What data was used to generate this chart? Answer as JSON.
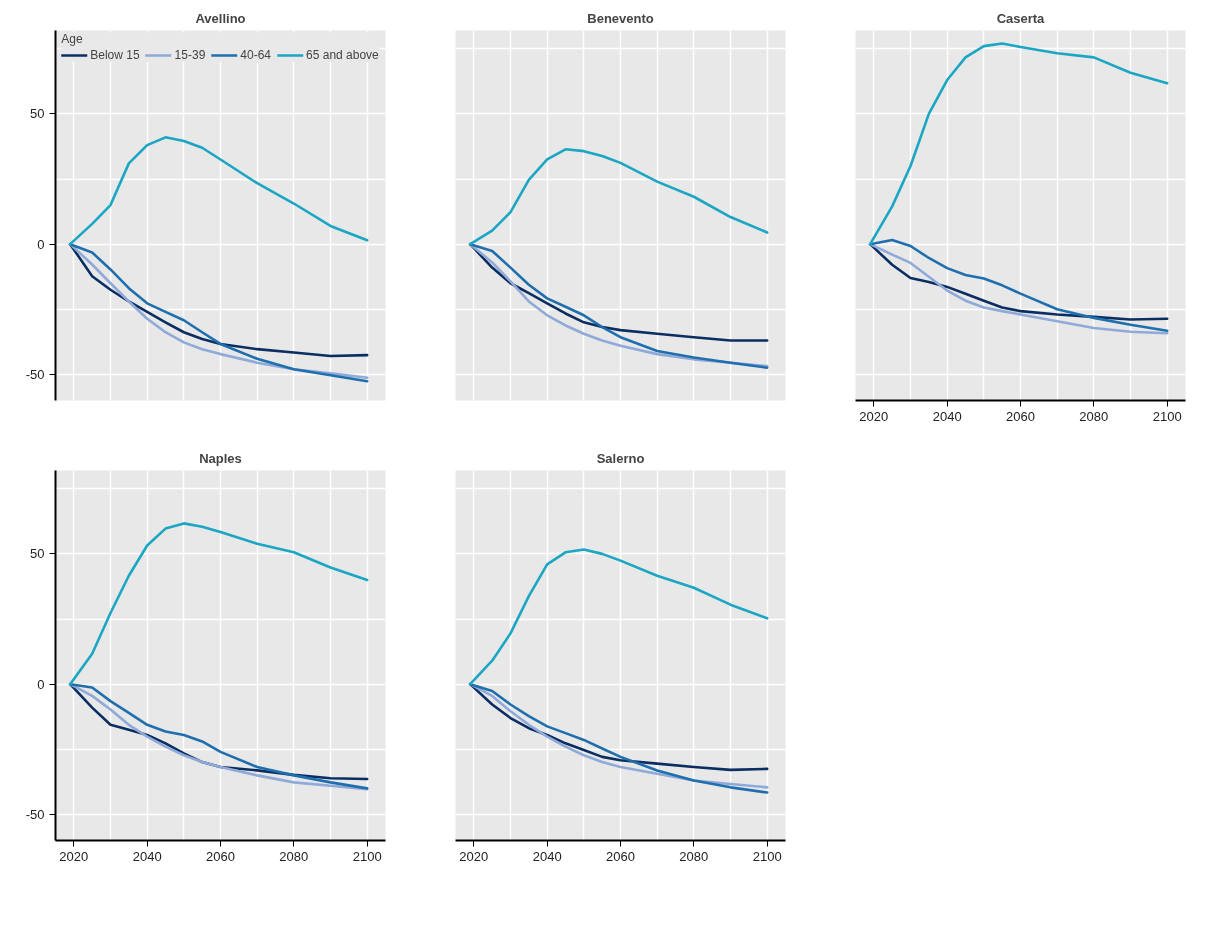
{
  "chart_data": [
    {
      "type": "line",
      "title": "Avellino",
      "legend": "top",
      "legend_title": "Age",
      "tick_labels": "y",
      "grid": true,
      "x": [
        2019,
        2025,
        2030,
        2035,
        2040,
        2045,
        2050,
        2055,
        2060,
        2070,
        2080,
        2090,
        2100
      ],
      "xlim": [
        2015,
        2105
      ],
      "xticks": [
        2020,
        {
          "value": 2030,
          "label": null
        },
        2040,
        {
          "value": 2050,
          "label": null
        },
        2060,
        {
          "value": 2070,
          "label": null
        },
        2080,
        {
          "value": 2090,
          "label": null
        },
        2100
      ],
      "ylim": [
        -60,
        82
      ],
      "yticks": [
        -50,
        {
          "value": -25,
          "label": null
        },
        0,
        {
          "value": 25,
          "label": null
        },
        50,
        {
          "value": 75,
          "label": null
        }
      ],
      "series": [
        {
          "name": "Below 15",
          "color": "#0b2e62",
          "values": [
            0,
            -12.3,
            -17.5,
            -22,
            -26,
            -30,
            -33.8,
            -36.4,
            -38.3,
            -40.3,
            -41.6,
            -42.9,
            -42.6
          ]
        },
        {
          "name": "15-39",
          "color": "#8fa9d8",
          "values": [
            0,
            -7.8,
            -15,
            -22,
            -28.6,
            -33.8,
            -37.7,
            -40.3,
            -42.2,
            -45.5,
            -48,
            -49.6,
            -51.3
          ]
        },
        {
          "name": "40-64",
          "color": "#1f6fae",
          "values": [
            0,
            -3.2,
            -9.7,
            -16.9,
            -22.7,
            -26,
            -29.2,
            -33.8,
            -38.3,
            -44,
            -48,
            -50.3,
            -52.6
          ]
        },
        {
          "name": "65 and above",
          "color": "#1ba6c3",
          "values": [
            0,
            7.8,
            15,
            31,
            38,
            41,
            39.6,
            37,
            32.5,
            23.4,
            15.6,
            7,
            1.5
          ]
        }
      ]
    },
    {
      "type": "line",
      "title": "Benevento",
      "tick_labels": false,
      "grid": true,
      "x": [
        2019,
        2025,
        2030,
        2035,
        2040,
        2045,
        2050,
        2055,
        2060,
        2070,
        2080,
        2090,
        2100
      ],
      "xlim": [
        2015,
        2105
      ],
      "xticks": [
        2020,
        {
          "value": 2030,
          "label": null
        },
        2040,
        {
          "value": 2050,
          "label": null
        },
        2060,
        {
          "value": 2070,
          "label": null
        },
        2080,
        {
          "value": 2090,
          "label": null
        },
        2100
      ],
      "ylim": [
        -60,
        82
      ],
      "yticks": [
        -50,
        {
          "value": -25,
          "label": null
        },
        0,
        {
          "value": 25,
          "label": null
        },
        50,
        {
          "value": 75,
          "label": null
        }
      ],
      "series": [
        {
          "color": "#0b2e62",
          "values": [
            0,
            -9,
            -15,
            -18.8,
            -22.7,
            -26.6,
            -30,
            -31.8,
            -33,
            -34.4,
            -35.7,
            -37,
            -37
          ]
        },
        {
          "color": "#8fa9d8",
          "values": [
            0,
            -7,
            -14.3,
            -22,
            -27.3,
            -31.2,
            -34.4,
            -37,
            -39,
            -42.2,
            -44.2,
            -45.5,
            -46.8
          ]
        },
        {
          "color": "#1f6fae",
          "values": [
            0,
            -2.6,
            -9,
            -15.6,
            -20.8,
            -24,
            -27.3,
            -31.8,
            -35.7,
            -41,
            -43.5,
            -45.5,
            -47.4
          ]
        },
        {
          "color": "#1ba6c3",
          "values": [
            0,
            5.2,
            12.3,
            24.7,
            32.5,
            36.4,
            35.7,
            33.8,
            31.2,
            24,
            18.2,
            10.4,
            4.5
          ]
        }
      ]
    },
    {
      "type": "line",
      "title": "Caserta",
      "tick_labels": "x",
      "grid": true,
      "x": [
        2019,
        2025,
        2030,
        2035,
        2040,
        2045,
        2050,
        2055,
        2060,
        2070,
        2080,
        2090,
        2100
      ],
      "xlim": [
        2015,
        2105
      ],
      "xticks": [
        2020,
        {
          "value": 2030,
          "label": null
        },
        2040,
        {
          "value": 2050,
          "label": null
        },
        2060,
        {
          "value": 2070,
          "label": null
        },
        2080,
        {
          "value": 2090,
          "label": null
        },
        2100
      ],
      "ylim": [
        -60,
        82
      ],
      "yticks": [
        -50,
        {
          "value": -25,
          "label": null
        },
        0,
        {
          "value": 25,
          "label": null
        },
        50,
        {
          "value": 75,
          "label": null
        }
      ],
      "series": [
        {
          "color": "#0b2e62",
          "values": [
            0,
            -7.9,
            -13,
            -14.5,
            -16.4,
            -19,
            -21.7,
            -24.3,
            -25.7,
            -27,
            -27.9,
            -28.9,
            -28.6
          ]
        },
        {
          "color": "#8fa9d8",
          "values": [
            0,
            -4,
            -7.2,
            -12.5,
            -17.8,
            -21.7,
            -24.3,
            -25.7,
            -27,
            -29.6,
            -32.2,
            -33.6,
            -34.2
          ]
        },
        {
          "color": "#1f6fae",
          "values": [
            0,
            1.6,
            -0.7,
            -5.3,
            -9.2,
            -11.8,
            -13.2,
            -15.8,
            -19,
            -25,
            -28.3,
            -30.9,
            -33.2
          ]
        },
        {
          "color": "#1ba6c3",
          "values": [
            0,
            14.5,
            30,
            50,
            63,
            71.7,
            76,
            77,
            75.7,
            73.3,
            71.7,
            65.8,
            61.8
          ]
        }
      ]
    },
    {
      "type": "line",
      "title": "Naples",
      "grid": true,
      "x": [
        2019,
        2025,
        2030,
        2035,
        2040,
        2045,
        2050,
        2055,
        2060,
        2070,
        2080,
        2090,
        2100
      ],
      "xlim": [
        2015,
        2105
      ],
      "xticks": [
        2020,
        {
          "value": 2030,
          "label": null
        },
        2040,
        {
          "value": 2050,
          "label": null
        },
        2060,
        {
          "value": 2070,
          "label": null
        },
        2080,
        {
          "value": 2090,
          "label": null
        },
        2100
      ],
      "ylim": [
        -60,
        82
      ],
      "yticks": [
        -50,
        {
          "value": -25,
          "label": null
        },
        0,
        {
          "value": 25,
          "label": null
        },
        50,
        {
          "value": 75,
          "label": null
        }
      ],
      "series": [
        {
          "color": "#0b2e62",
          "values": [
            0,
            -9,
            -15.6,
            -17.5,
            -19.5,
            -22.7,
            -26.6,
            -29.9,
            -31.8,
            -33.1,
            -34.8,
            -36.1,
            -36.4
          ]
        },
        {
          "color": "#8fa9d8",
          "values": [
            0,
            -4.5,
            -9.7,
            -15.6,
            -20.1,
            -24,
            -27.3,
            -29.9,
            -31.8,
            -35,
            -37.7,
            -39,
            -40.3
          ]
        },
        {
          "color": "#1f6fae",
          "values": [
            0,
            -1.3,
            -6.5,
            -11,
            -15.6,
            -18.2,
            -19.5,
            -22,
            -26,
            -31.8,
            -35,
            -37.7,
            -40
          ]
        },
        {
          "color": "#1ba6c3",
          "values": [
            0,
            11.7,
            27.3,
            41.6,
            53.2,
            59.7,
            61.7,
            60.4,
            58.4,
            53.9,
            50.6,
            44.8,
            40
          ]
        }
      ]
    },
    {
      "type": "line",
      "title": "Salerno",
      "tick_labels": "x",
      "grid": true,
      "x": [
        2019,
        2025,
        2030,
        2035,
        2040,
        2045,
        2050,
        2055,
        2060,
        2070,
        2080,
        2090,
        2100
      ],
      "xlim": [
        2015,
        2105
      ],
      "xticks": [
        2020,
        {
          "value": 2030,
          "label": null
        },
        2040,
        {
          "value": 2050,
          "label": null
        },
        2060,
        {
          "value": 2070,
          "label": null
        },
        2080,
        {
          "value": 2090,
          "label": null
        },
        2100
      ],
      "ylim": [
        -60,
        82
      ],
      "yticks": [
        -50,
        {
          "value": -25,
          "label": null
        },
        0,
        {
          "value": 25,
          "label": null
        },
        50,
        {
          "value": 75,
          "label": null
        }
      ],
      "series": [
        {
          "color": "#0b2e62",
          "values": [
            0,
            -7.8,
            -13,
            -16.9,
            -19.5,
            -22.7,
            -25.3,
            -27.9,
            -29.2,
            -30.5,
            -31.8,
            -32.9,
            -32.5
          ]
        },
        {
          "color": "#8fa9d8",
          "values": [
            0,
            -4.5,
            -10.4,
            -15.6,
            -20.1,
            -24,
            -27.3,
            -29.9,
            -31.8,
            -34.4,
            -37,
            -38.3,
            -39.6
          ]
        },
        {
          "color": "#1f6fae",
          "values": [
            0,
            -2.6,
            -7.8,
            -12.3,
            -16.2,
            -18.8,
            -21.4,
            -24.7,
            -27.9,
            -33.1,
            -37,
            -39.6,
            -41.6
          ]
        },
        {
          "color": "#1ba6c3",
          "values": [
            0,
            9,
            19.5,
            33.8,
            46,
            50.6,
            51.7,
            50,
            47.4,
            41.6,
            37,
            30.5,
            25.3
          ]
        }
      ]
    }
  ]
}
